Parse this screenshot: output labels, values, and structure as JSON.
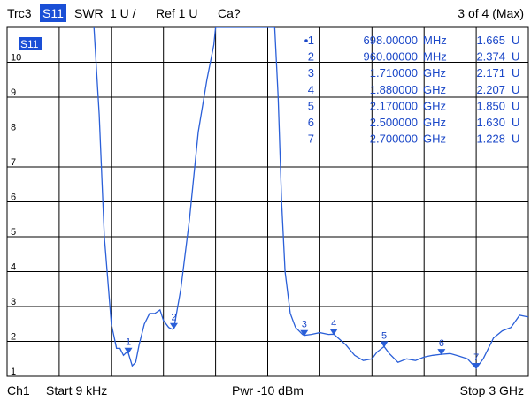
{
  "header": {
    "trace": "Trc3",
    "parameter": "S11",
    "format": "SWR",
    "scale": "1 U /",
    "reference": "Ref 1 U",
    "calibration": "Ca?",
    "page": "3 of 4 (Max)"
  },
  "footer": {
    "channel": "Ch1",
    "start": "Start  9 kHz",
    "power": "Pwr  -10 dBm",
    "stop": "Stop  3 GHz"
  },
  "colors": {
    "trace": "#2a5fd8",
    "grid": "#000000",
    "badge": "#1a4fd6",
    "text_blue": "#1a47c8"
  },
  "chart_data": {
    "type": "line",
    "title": "",
    "xlabel": "",
    "ylabel": "",
    "xlim": [
      9e-06,
      3.0
    ],
    "ylim": [
      1,
      11
    ],
    "grid": true,
    "badge": "S11",
    "y_ticks": [
      "10",
      "9",
      "8",
      "7",
      "6",
      "5",
      "4",
      "3",
      "2",
      "1"
    ],
    "series": [
      {
        "name": "",
        "x_unit": "GHz",
        "x": [
          0.5,
          0.53,
          0.56,
          0.6,
          0.63,
          0.65,
          0.67,
          0.69,
          0.698,
          0.72,
          0.74,
          0.76,
          0.79,
          0.82,
          0.85,
          0.88,
          0.9,
          0.93,
          0.95,
          0.96,
          1.0,
          1.05,
          1.1,
          1.15,
          1.19,
          1.2,
          1.22,
          1.24,
          1.26,
          1.28,
          1.3,
          1.4,
          1.5,
          1.54,
          1.56,
          1.58,
          1.6,
          1.63,
          1.66,
          1.68,
          1.7,
          1.71,
          1.75,
          1.8,
          1.85,
          1.88,
          1.95,
          2.0,
          2.05,
          2.1,
          2.13,
          2.17,
          2.2,
          2.25,
          2.3,
          2.35,
          2.4,
          2.45,
          2.5,
          2.55,
          2.6,
          2.65,
          2.7,
          2.74,
          2.8,
          2.85,
          2.9,
          2.95,
          3.0
        ],
        "y": [
          11.0,
          8.5,
          5.0,
          2.5,
          1.8,
          1.8,
          1.6,
          1.7,
          1.665,
          1.3,
          1.4,
          1.9,
          2.5,
          2.8,
          2.8,
          2.9,
          2.6,
          2.4,
          2.35,
          2.374,
          3.5,
          5.5,
          8.0,
          9.5,
          10.5,
          11.0,
          11.0,
          11.0,
          11.0,
          11.0,
          11.0,
          11.0,
          11.0,
          11.0,
          9.0,
          6.0,
          4.0,
          2.8,
          2.4,
          2.3,
          2.2,
          2.171,
          2.2,
          2.25,
          2.2,
          2.207,
          1.9,
          1.6,
          1.45,
          1.5,
          1.7,
          1.85,
          1.65,
          1.4,
          1.5,
          1.45,
          1.55,
          1.6,
          1.63,
          1.65,
          1.58,
          1.5,
          1.228,
          1.5,
          2.1,
          2.3,
          2.4,
          2.75,
          2.7
        ]
      }
    ],
    "markers": [
      {
        "label": "1",
        "x_text": "698.00000",
        "unit": "MHz",
        "value": "1.665",
        "y_unit": "U",
        "x_ghz": 0.698,
        "y": 1.665
      },
      {
        "label": "2",
        "x_text": "960.00000",
        "unit": "MHz",
        "value": "2.374",
        "y_unit": "U",
        "x_ghz": 0.96,
        "y": 2.374
      },
      {
        "label": "3",
        "x_text": "1.710000",
        "unit": "GHz",
        "value": "2.171",
        "y_unit": "U",
        "x_ghz": 1.71,
        "y": 2.171
      },
      {
        "label": "4",
        "x_text": "1.880000",
        "unit": "GHz",
        "value": "2.207",
        "y_unit": "U",
        "x_ghz": 1.88,
        "y": 2.207
      },
      {
        "label": "5",
        "x_text": "2.170000",
        "unit": "GHz",
        "value": "1.850",
        "y_unit": "U",
        "x_ghz": 2.17,
        "y": 1.85
      },
      {
        "label": "6",
        "x_text": "2.500000",
        "unit": "GHz",
        "value": "1.630",
        "y_unit": "U",
        "x_ghz": 2.5,
        "y": 1.63
      },
      {
        "label": "7",
        "x_text": "2.700000",
        "unit": "GHz",
        "value": "1.228",
        "y_unit": "U",
        "x_ghz": 2.7,
        "y": 1.228
      }
    ],
    "active_marker": "1"
  }
}
